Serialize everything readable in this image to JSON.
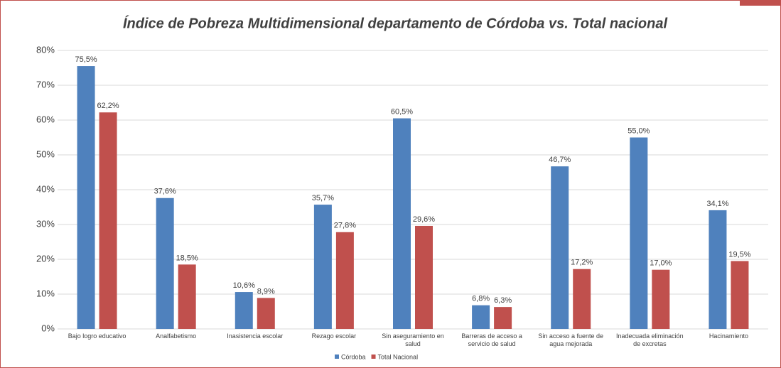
{
  "chart_data": {
    "type": "bar",
    "title": "Índice de Pobreza Multidimensional departamento de Córdoba vs. Total nacional",
    "categories": [
      "Bajo logro educativo",
      "Analfabetismo",
      "Inasistencia escolar",
      "Rezago escolar",
      "Sin aseguramiento en salud",
      "Barreras de acceso a servicio de salud",
      "Sin acceso a fuente de agua mejorada",
      "Inadecuada eliminación de excretas",
      "Hacinamiento"
    ],
    "series": [
      {
        "name": "Córdoba",
        "color": "#4f81bd",
        "values": [
          75.5,
          37.6,
          10.6,
          35.7,
          60.5,
          6.8,
          46.7,
          55.0,
          34.1
        ],
        "value_labels": [
          "75,5%",
          "37,6%",
          "10,6%",
          "35,7%",
          "60,5%",
          "6,8%",
          "46,7%",
          "55,0%",
          "34,1%"
        ]
      },
      {
        "name": "Total Nacional",
        "color": "#c0504d",
        "values": [
          62.2,
          18.5,
          8.9,
          27.8,
          29.6,
          6.3,
          17.2,
          17.0,
          19.5
        ],
        "value_labels": [
          "62,2%",
          "18,5%",
          "8,9%",
          "27,8%",
          "29,6%",
          "6,3%",
          "17,2%",
          "17,0%",
          "19,5%"
        ]
      }
    ],
    "ylim": [
      0,
      80
    ],
    "yticks": [
      {
        "value": 0,
        "label": "0%"
      },
      {
        "value": 10,
        "label": "10%"
      },
      {
        "value": 20,
        "label": "20%"
      },
      {
        "value": 30,
        "label": "30%"
      },
      {
        "value": 40,
        "label": "40%"
      },
      {
        "value": 50,
        "label": "50%"
      },
      {
        "value": 60,
        "label": "60%"
      },
      {
        "value": 70,
        "label": "70%"
      },
      {
        "value": 80,
        "label": "80%"
      }
    ],
    "grid": true,
    "legend": "bottom"
  }
}
